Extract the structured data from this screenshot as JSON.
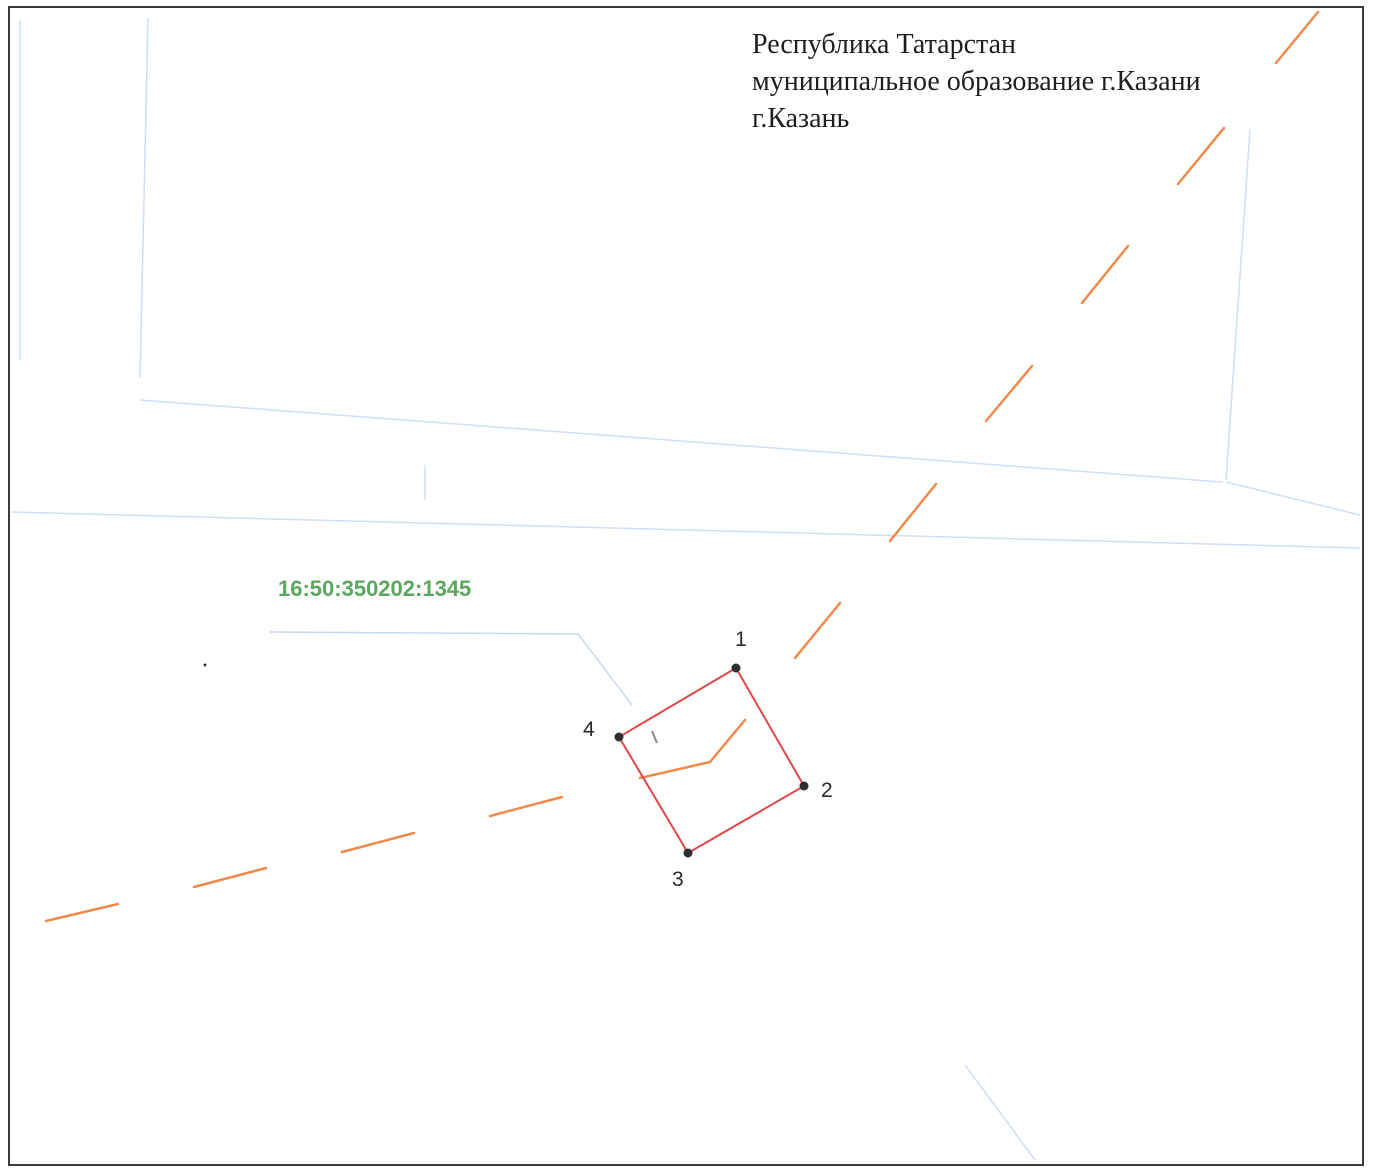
{
  "address": {
    "line1": "Республика Татарстан",
    "line2": "муниципальное образование г.Казани",
    "line3": "г.Казань"
  },
  "parcel": {
    "cadastral_number": "16:50:350202:1345",
    "points": [
      "1",
      "2",
      "3",
      "4"
    ]
  },
  "colors": {
    "parcel_boundary": "#e0484a",
    "zone_boundary_dashed": "#f08a4b",
    "cadastral_label": "#5aa85e",
    "background_lines": "#cfdff0",
    "frame": "#3a3a3a"
  }
}
